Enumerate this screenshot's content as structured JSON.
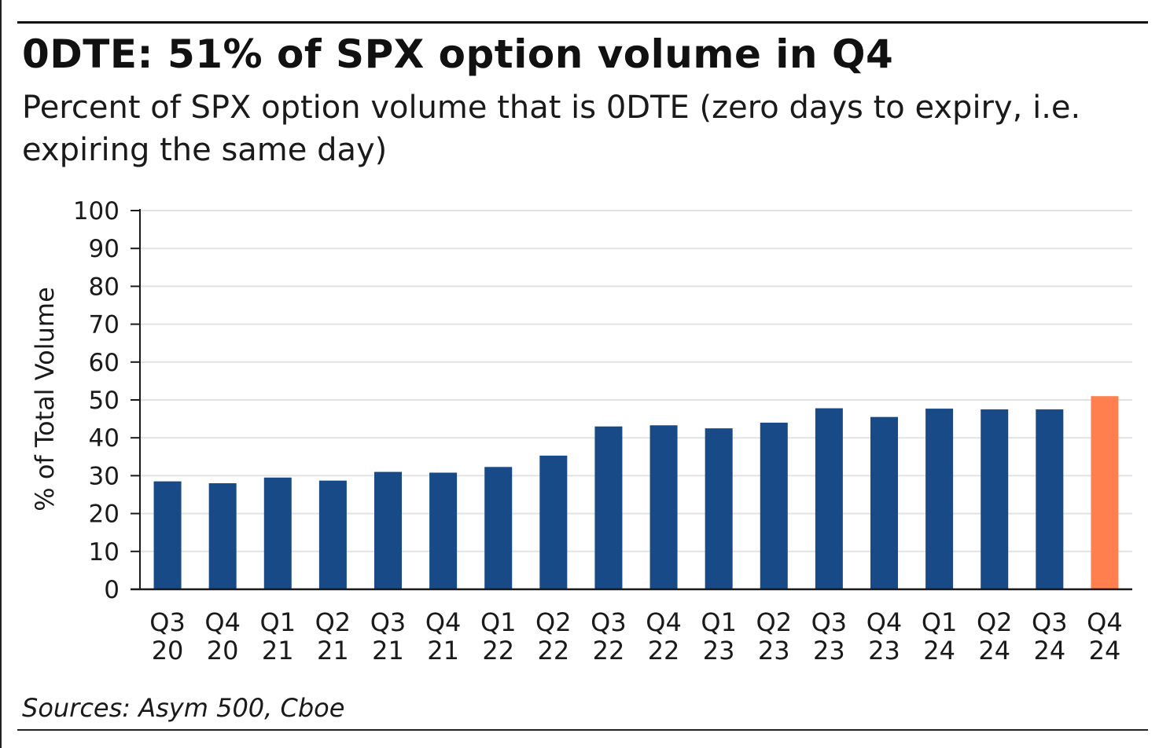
{
  "header": {
    "title": "0DTE: 51% of SPX option volume in Q4",
    "subtitle": "Percent of SPX option volume that is 0DTE (zero days to expiry, i.e. expiring the same day)"
  },
  "footer": {
    "source": "Sources: Asym 500, Cboe"
  },
  "colors": {
    "bar": "#174A86",
    "highlight": "#FF7F4F",
    "grid": "#e2e2e2",
    "axis": "#1a1a1a"
  },
  "chart_data": {
    "type": "bar",
    "title": "0DTE: 51% of SPX option volume in Q4",
    "subtitle": "Percent of SPX option volume that is 0DTE (zero days to expiry, i.e. expiring the same day)",
    "xlabel": "",
    "ylabel": "% of Total Volume",
    "ylim": [
      0,
      100
    ],
    "yticks": [
      0,
      10,
      20,
      30,
      40,
      50,
      60,
      70,
      80,
      90,
      100
    ],
    "grid": true,
    "legend": "none",
    "categories": [
      [
        "Q3",
        "20"
      ],
      [
        "Q4",
        "20"
      ],
      [
        "Q1",
        "21"
      ],
      [
        "Q2",
        "21"
      ],
      [
        "Q3",
        "21"
      ],
      [
        "Q4",
        "21"
      ],
      [
        "Q1",
        "22"
      ],
      [
        "Q2",
        "22"
      ],
      [
        "Q3",
        "22"
      ],
      [
        "Q4",
        "22"
      ],
      [
        "Q1",
        "23"
      ],
      [
        "Q2",
        "23"
      ],
      [
        "Q3",
        "23"
      ],
      [
        "Q4",
        "23"
      ],
      [
        "Q1",
        "24"
      ],
      [
        "Q2",
        "24"
      ],
      [
        "Q3",
        "24"
      ],
      [
        "Q4",
        "24"
      ]
    ],
    "values": [
      28.5,
      28,
      29.5,
      28.7,
      31,
      30.8,
      32.3,
      35.3,
      43,
      43.3,
      42.5,
      44,
      47.8,
      45.5,
      47.7,
      47.5,
      47.5,
      51
    ],
    "highlight_index": 17
  }
}
